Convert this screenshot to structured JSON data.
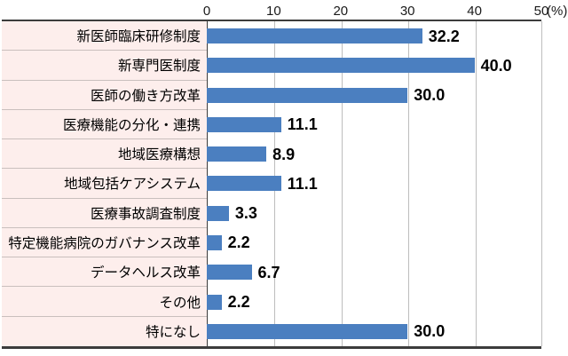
{
  "chart_data": {
    "type": "bar",
    "orientation": "horizontal",
    "title": "",
    "xlabel": "",
    "ylabel": "",
    "categories": [
      "新医師臨床研修制度",
      "新専門医制度",
      "医師の働き方改革",
      "医療機能の分化・連携",
      "地域医療構想",
      "地域包括ケアシステム",
      "医療事故調査制度",
      "特定機能病院のガバナンス改革",
      "データヘルス改革",
      "その他",
      "特になし"
    ],
    "values": [
      32.2,
      40.0,
      30.0,
      11.1,
      8.9,
      11.1,
      3.3,
      2.2,
      6.7,
      2.2,
      30.0
    ],
    "value_labels": [
      "32.2",
      "40.0",
      "30.0",
      "11.1",
      "8.9",
      "11.1",
      "3.3",
      "2.2",
      "6.7",
      "2.2",
      "30.0"
    ],
    "xlim": [
      0,
      50
    ],
    "x_ticks": [
      0,
      10,
      20,
      30,
      40,
      50
    ],
    "x_tick_labels": [
      "0",
      "10",
      "20",
      "30",
      "40",
      "50"
    ],
    "unit_label": "(%)",
    "axis_position": "top",
    "grid": true,
    "legend": false,
    "colors": {
      "bar": "#4b7fc0",
      "category_bg": "#fdeeec",
      "gridline": "#bdbdbd",
      "border_dark": "#3c3c3c",
      "row_separator": "#c9bfbd",
      "text": "#000000"
    }
  }
}
